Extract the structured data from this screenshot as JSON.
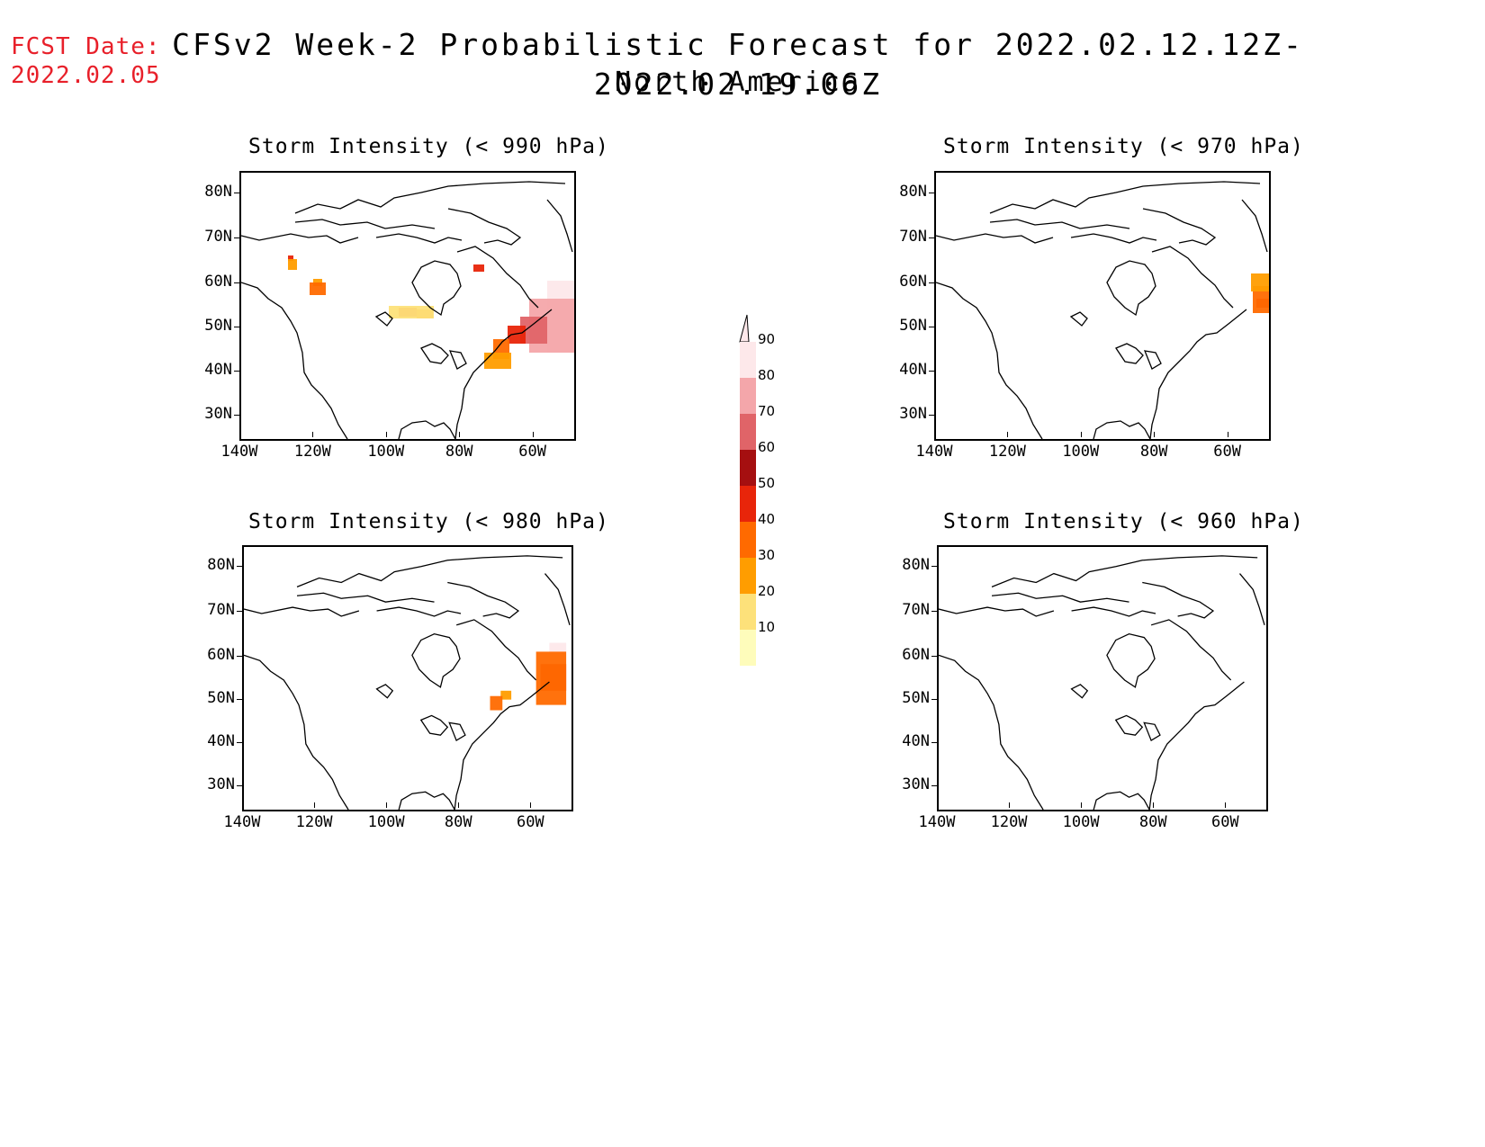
{
  "header": {
    "fcst_label": "FCST Date:",
    "fcst_date": "2022.02.05",
    "title": "CFSv2 Week-2 Probabilistic Forecast for 2022.02.12.12Z-2022.02.19.06Z",
    "subtitle": "North America"
  },
  "panels": [
    {
      "title": "Storm Intensity (< 990 hPa)",
      "threshold_hpa": 990
    },
    {
      "title": "Storm Intensity (< 970 hPa)",
      "threshold_hpa": 970
    },
    {
      "title": "Storm Intensity (< 980 hPa)",
      "threshold_hpa": 980
    },
    {
      "title": "Storm Intensity (< 960 hPa)",
      "threshold_hpa": 960
    }
  ],
  "axes": {
    "lat_labels": [
      "80N",
      "70N",
      "60N",
      "50N",
      "40N",
      "30N"
    ],
    "lon_labels": [
      "140W",
      "120W",
      "100W",
      "80W",
      "60W"
    ]
  },
  "colorbar": {
    "labels": [
      "90",
      "80",
      "70",
      "60",
      "50",
      "40",
      "30",
      "20",
      "10"
    ],
    "colors": [
      "#fde8ea",
      "#f4a6aa",
      "#e06468",
      "#a50f10",
      "#e8250a",
      "#ff6a00",
      "#ff9d00",
      "#fde17a",
      "#fefcbb"
    ]
  }
}
